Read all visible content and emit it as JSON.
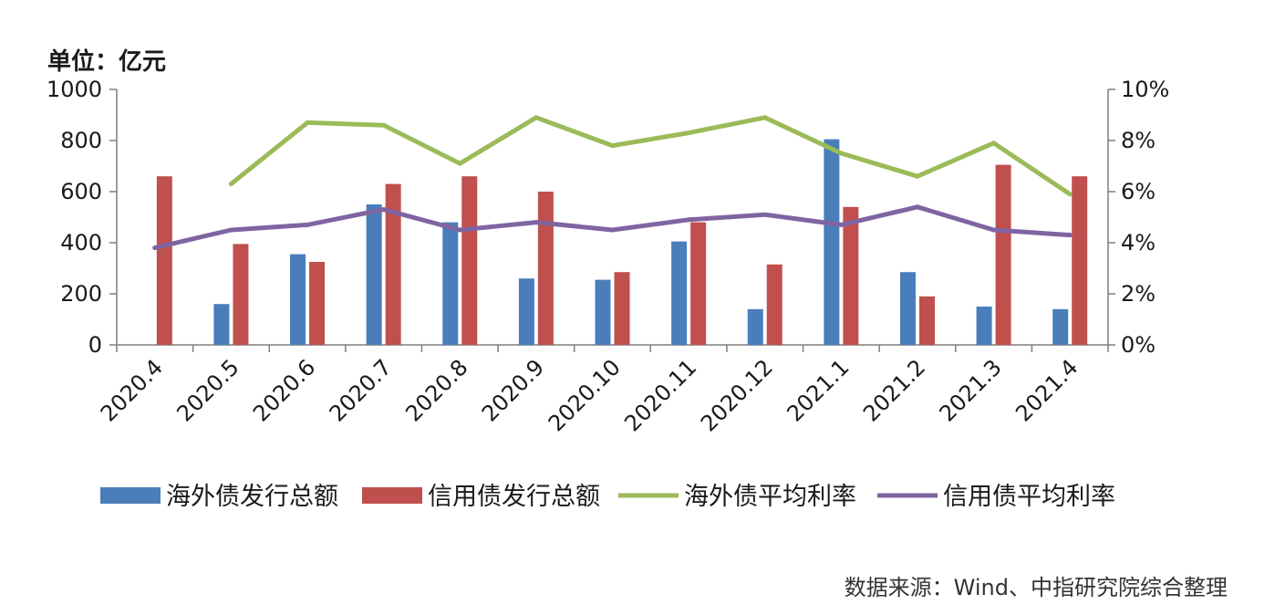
{
  "chart_data": {
    "type": "bar",
    "unit_label": "单位：亿元",
    "categories": [
      "2020.4",
      "2020.5",
      "2020.6",
      "2020.7",
      "2020.8",
      "2020.9",
      "2020.10",
      "2020.11",
      "2020.12",
      "2021.1",
      "2021.2",
      "2021.3",
      "2021.4"
    ],
    "y_left": {
      "range": [
        0,
        1000
      ],
      "ticks": [
        0,
        200,
        400,
        600,
        800,
        1000
      ],
      "tick_labels": [
        "0",
        "200",
        "400",
        "600",
        "800",
        "1000"
      ]
    },
    "y_right": {
      "range": [
        0,
        10
      ],
      "ticks": [
        0,
        2,
        4,
        6,
        8,
        10
      ],
      "tick_labels": [
        "0%",
        "2%",
        "4%",
        "6%",
        "8%",
        "10%"
      ]
    },
    "series": [
      {
        "name": "海外债发行总额",
        "kind": "bar",
        "axis": "left",
        "color": "#4a7ebb",
        "values": [
          null,
          160,
          355,
          550,
          480,
          260,
          255,
          405,
          140,
          805,
          285,
          150,
          140
        ]
      },
      {
        "name": "信用债发行总额",
        "kind": "bar",
        "axis": "left",
        "color": "#c0504d",
        "values": [
          660,
          395,
          325,
          630,
          660,
          600,
          285,
          480,
          315,
          540,
          190,
          705,
          660
        ]
      },
      {
        "name": "海外债平均利率",
        "kind": "line",
        "axis": "right",
        "color": "#9bbb59",
        "values": [
          null,
          6.3,
          8.7,
          8.6,
          7.1,
          8.9,
          7.8,
          8.3,
          8.9,
          7.5,
          6.6,
          7.9,
          5.9
        ]
      },
      {
        "name": "信用债平均利率",
        "kind": "line",
        "axis": "right",
        "color": "#8064a2",
        "values": [
          3.8,
          4.5,
          4.7,
          5.3,
          4.5,
          4.8,
          4.5,
          4.9,
          5.1,
          4.7,
          5.4,
          4.5,
          4.3
        ]
      }
    ],
    "legend_position": "bottom",
    "grid": false
  },
  "source_note": "数据来源：Wind、中指研究院综合整理"
}
